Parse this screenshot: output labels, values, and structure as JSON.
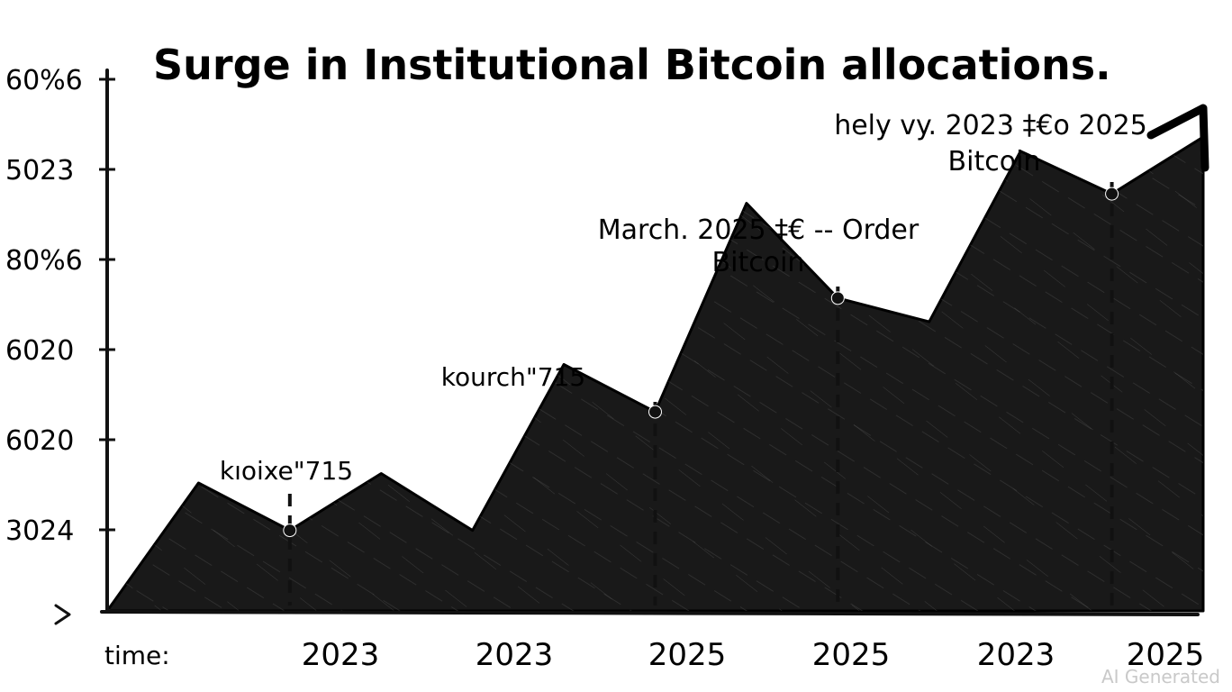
{
  "chart_data": {
    "type": "area",
    "title": "Surge in Institutional Bitcoin allocations.",
    "ylabel": "",
    "xlabel": "time:",
    "y_tick_labels": [
      "60%6",
      "5023",
      "80%6",
      "6020",
      "6020",
      "3024"
    ],
    "x_tick_labels": [
      "2023",
      "2023",
      "2025",
      "2025",
      "2023",
      "2025"
    ],
    "series": [
      {
        "values": [
          0,
          0.27,
          0.17,
          0.29,
          0.17,
          0.52,
          0.42,
          0.86,
          0.66,
          0.61,
          0.97,
          0.88,
          1.0
        ]
      }
    ],
    "annotations": [
      {
        "label": "kıoixe\"715",
        "point_index": 2
      },
      {
        "label": "kourch\"715",
        "point_index": 6
      },
      {
        "label": "March. 2025 ‡€ -- Order",
        "label2": "Bitcoin",
        "point_index": 8
      },
      {
        "label": "hely vy. 2023 ‡€o 2025",
        "label2": "Bitcoin",
        "point_index": 11
      }
    ],
    "colors": {
      "area": "#1a1a1a",
      "axis": "#111111",
      "text": "#111111",
      "hatch": "#3a3a3a"
    },
    "grid": false,
    "legend": "none"
  },
  "watermark": "AI Generated"
}
